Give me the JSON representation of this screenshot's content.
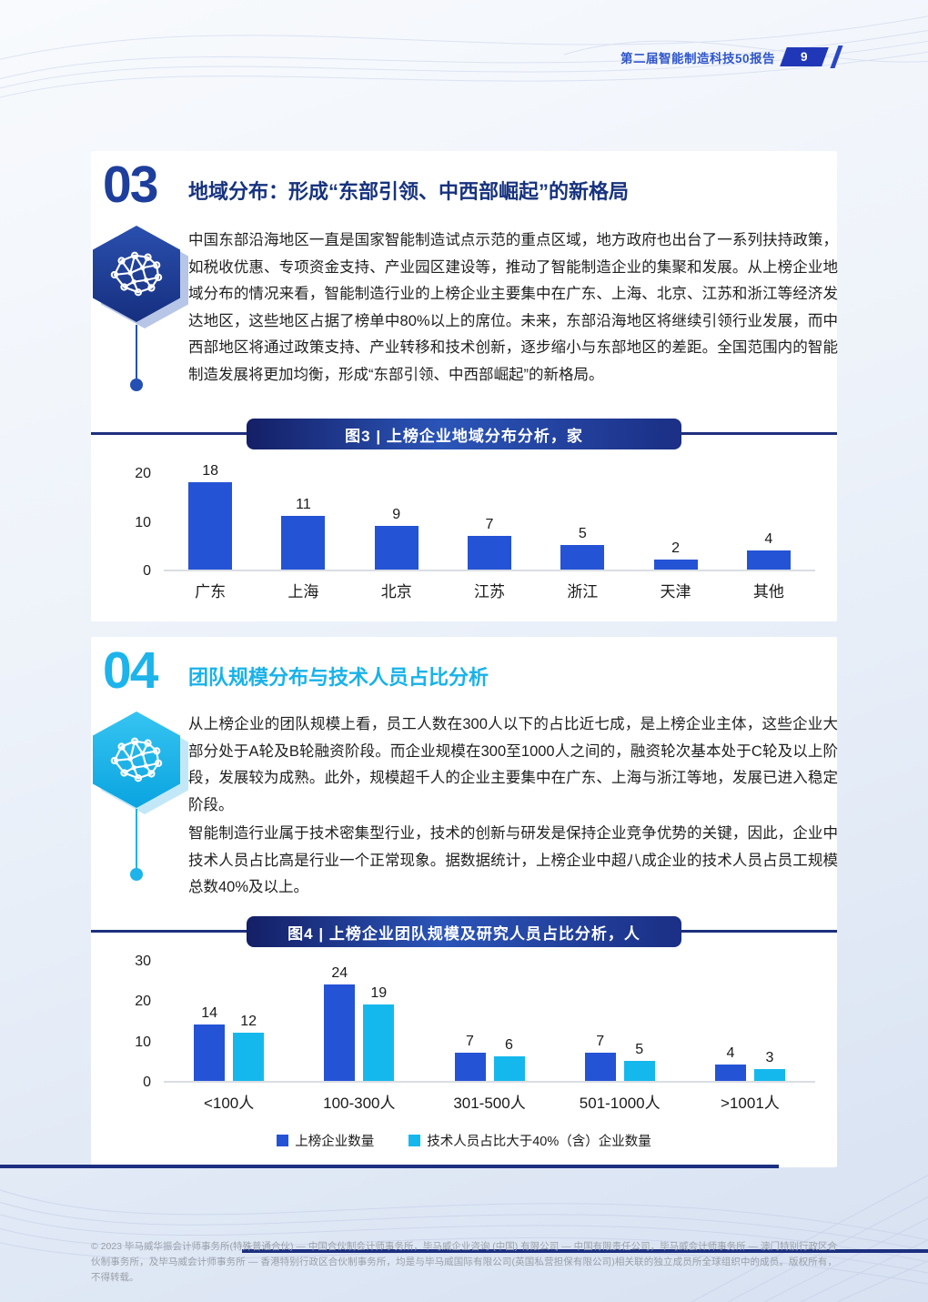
{
  "header": {
    "report_title": "第二届智能制造科技50报告",
    "page_number": "9"
  },
  "sections": [
    {
      "number": "03",
      "title": "地域分布：形成“东部引领、中西部崛起”的新格局",
      "accent_color": "#1d3e9c",
      "paragraphs": [
        "中国东部沿海地区一直是国家智能制造试点示范的重点区域，地方政府也出台了一系列扶持政策，如税收优惠、专项资金支持、产业园区建设等，推动了智能制造企业的集聚和发展。从上榜企业地域分布的情况来看，智能制造行业的上榜企业主要集中在广东、上海、北京、江苏和浙江等经济发达地区，这些地区占据了榜单中80%以上的席位。未来，东部沿海地区将继续引领行业发展，而中西部地区将通过政策支持、产业转移和技术创新，逐步缩小与东部地区的差距。全国范围内的智能制造发展将更加均衡，形成“东部引领、中西部崛起”的新格局。"
      ]
    },
    {
      "number": "04",
      "title": "团队规模分布与技术人员占比分析",
      "accent_color": "#1cb4ea",
      "paragraphs": [
        "从上榜企业的团队规模上看，员工人数在300人以下的占比近七成，是上榜企业主体，这些企业大部分处于A轮及B轮融资阶段。而企业规模在300至1000人之间的，融资轮次基本处于C轮及以上阶段，发展较为成熟。此外，规模超千人的企业主要集中在广东、上海与浙江等地，发展已进入稳定阶段。",
        "智能制造行业属于技术密集型行业，技术的创新与研发是保持企业竞争优势的关键，因此，企业中技术人员占比高是行业一个正常现象。据数据统计，上榜企业中超八成企业的技术人员占员工规模总数40%及以上。"
      ]
    }
  ],
  "chart_data": [
    {
      "type": "bar",
      "title": "图3 | 上榜企业地域分布分析，家",
      "categories": [
        "广东",
        "上海",
        "北京",
        "江苏",
        "浙江",
        "天津",
        "其他"
      ],
      "values": [
        18,
        11,
        9,
        7,
        5,
        2,
        4
      ],
      "yticks": [
        0,
        10,
        20
      ],
      "ylim": [
        0,
        23
      ],
      "bar_color": "#2553d5",
      "grid": false,
      "legend": false
    },
    {
      "type": "bar",
      "title": "图4 | 上榜企业团队规模及研究人员占比分析，人",
      "categories": [
        "<100人",
        "100-300人",
        "301-500人",
        "501-1000人",
        ">1001人"
      ],
      "series": [
        {
          "name": "上榜企业数量",
          "color": "#2553d5",
          "values": [
            14,
            24,
            7,
            7,
            4
          ]
        },
        {
          "name": "技术人员占比大于40%（含）企业数量",
          "color": "#15b8ec",
          "values": [
            12,
            19,
            6,
            5,
            3
          ]
        }
      ],
      "yticks": [
        0,
        10,
        20,
        30
      ],
      "ylim": [
        0,
        32
      ],
      "grid": false,
      "legend": true,
      "legend_position": "bottom"
    }
  ],
  "footer": {
    "text": "© 2023 毕马威华振会计师事务所(特殊普通合伙) — 中国合伙制会计师事务所，毕马威企业咨询 (中国) 有限公司 — 中国有限责任公司，毕马威会计师事务所 — 澳门特别行政区合伙制事务所，及毕马威会计师事务所 — 香港特别行政区合伙制事务所，均是与毕马威国际有限公司(英国私营担保有限公司)相关联的独立成员所全球组织中的成员。版权所有，不得转载。"
  },
  "colors": {
    "header_blue": "#2f55cb",
    "badge_blue": "#2038b8",
    "section3_navy": "#17337f",
    "section4_cyan": "#18b2e9",
    "bar_blue": "#2553d5",
    "bar_cyan": "#15b8ec",
    "titlebar_navy": "#1e2f7d",
    "accent_line_navy": "#1c2f80",
    "footer_gray": "#9aa0a9"
  }
}
